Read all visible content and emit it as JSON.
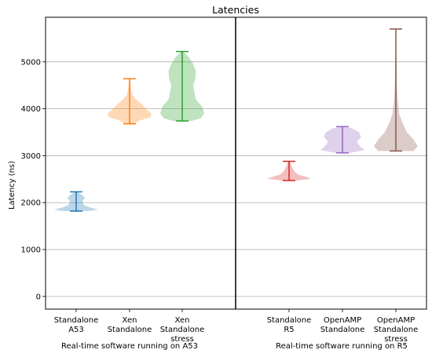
{
  "chart_data": {
    "type": "violin",
    "title": "Latencies",
    "ylabel": "Latency (ns)",
    "ylim": [
      -270,
      5950
    ],
    "yticks": [
      0,
      1000,
      2000,
      3000,
      4000,
      5000
    ],
    "grid": "horizontal",
    "groups": [
      {
        "label": "Real-time software running on A53"
      },
      {
        "label": "Real-time software running on R5"
      }
    ],
    "series": [
      {
        "name": "Standalone A53",
        "tick_lines": [
          "Standalone",
          "A53"
        ],
        "color": "#1f77b4",
        "min": 1820,
        "max": 2230,
        "density": [
          [
            1820,
            0.55
          ],
          [
            1850,
            1.0
          ],
          [
            1900,
            0.6
          ],
          [
            1950,
            0.35
          ],
          [
            2000,
            0.3
          ],
          [
            2050,
            0.3
          ],
          [
            2100,
            0.4
          ],
          [
            2150,
            0.3
          ],
          [
            2200,
            0.15
          ],
          [
            2230,
            0.05
          ]
        ]
      },
      {
        "name": "Xen Standalone",
        "tick_lines": [
          "Xen",
          "Standalone"
        ],
        "color": "#ff7f0e",
        "min": 3680,
        "max": 4640,
        "density": [
          [
            3680,
            0.2
          ],
          [
            3750,
            0.45
          ],
          [
            3820,
            0.95
          ],
          [
            3900,
            1.0
          ],
          [
            4000,
            0.75
          ],
          [
            4100,
            0.55
          ],
          [
            4200,
            0.3
          ],
          [
            4300,
            0.12
          ],
          [
            4450,
            0.06
          ],
          [
            4640,
            0.02
          ]
        ]
      },
      {
        "name": "Xen Standalone stress",
        "tick_lines": [
          "Xen",
          "Standalone",
          "stress"
        ],
        "color": "#2ca02c",
        "min": 3740,
        "max": 5220,
        "density": [
          [
            3740,
            0.4
          ],
          [
            3800,
            0.85
          ],
          [
            3900,
            1.0
          ],
          [
            4050,
            0.9
          ],
          [
            4200,
            0.62
          ],
          [
            4350,
            0.55
          ],
          [
            4500,
            0.5
          ],
          [
            4650,
            0.6
          ],
          [
            4800,
            0.62
          ],
          [
            4950,
            0.5
          ],
          [
            5100,
            0.3
          ],
          [
            5220,
            0.05
          ]
        ]
      },
      {
        "name": "Standalone R5",
        "tick_lines": [
          "Standalone",
          "R5"
        ],
        "color": "#d62728",
        "min": 2470,
        "max": 2880,
        "density": [
          [
            2470,
            0.35
          ],
          [
            2510,
            1.0
          ],
          [
            2550,
            0.75
          ],
          [
            2600,
            0.4
          ],
          [
            2650,
            0.28
          ],
          [
            2700,
            0.2
          ],
          [
            2750,
            0.15
          ],
          [
            2800,
            0.1
          ],
          [
            2880,
            0.03
          ]
        ]
      },
      {
        "name": "OpenAMP Standalone",
        "tick_lines": [
          "OpenAMP",
          "Standalone"
        ],
        "color": "#9467bd",
        "min": 3060,
        "max": 3620,
        "density": [
          [
            3060,
            0.35
          ],
          [
            3120,
            1.0
          ],
          [
            3200,
            0.8
          ],
          [
            3300,
            0.65
          ],
          [
            3400,
            0.85
          ],
          [
            3500,
            0.75
          ],
          [
            3580,
            0.45
          ],
          [
            3620,
            0.1
          ]
        ]
      },
      {
        "name": "OpenAMP Standalone stress",
        "tick_lines": [
          "OpenAMP",
          "Standalone",
          "stress"
        ],
        "color": "#8c564b",
        "min": 3100,
        "max": 5700,
        "density": [
          [
            3100,
            0.8
          ],
          [
            3200,
            1.0
          ],
          [
            3350,
            0.8
          ],
          [
            3500,
            0.5
          ],
          [
            3700,
            0.3
          ],
          [
            3900,
            0.15
          ],
          [
            4200,
            0.08
          ],
          [
            4500,
            0.05
          ],
          [
            5000,
            0.03
          ],
          [
            5700,
            0.01
          ]
        ]
      }
    ]
  }
}
